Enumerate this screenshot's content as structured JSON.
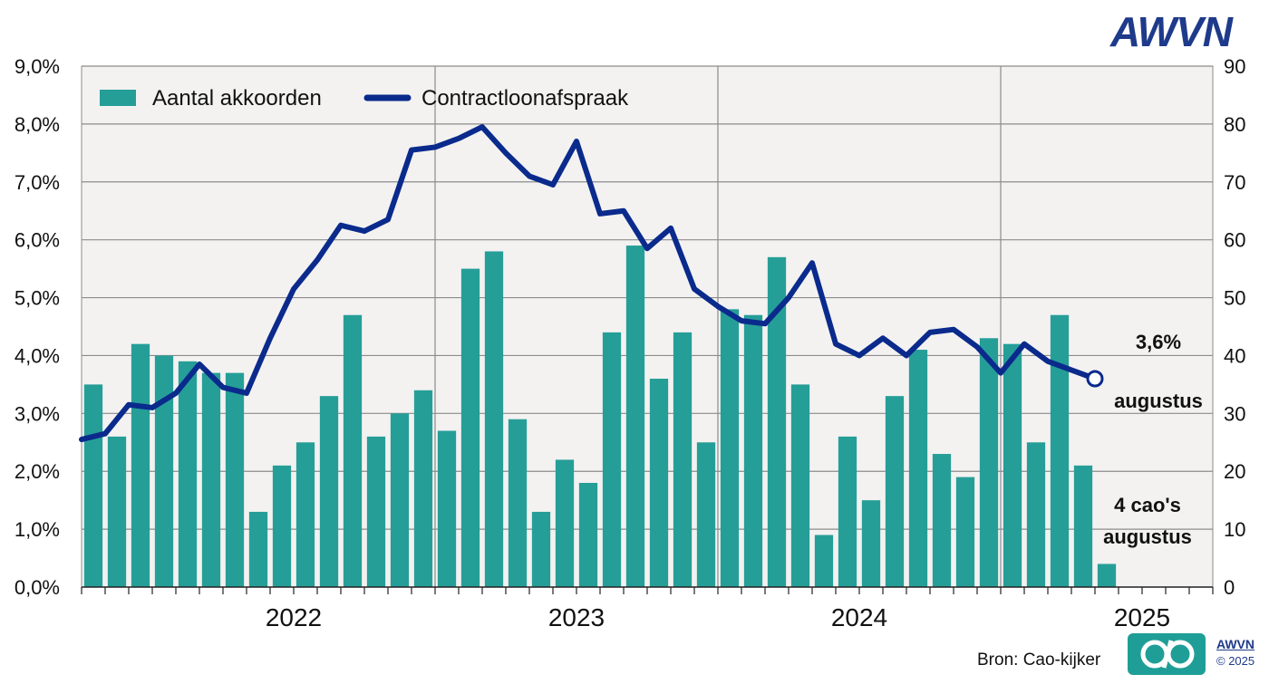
{
  "header": {
    "logo_text": "AWVN"
  },
  "footer": {
    "source": "Bron: Cao-kijker",
    "brand": "AWVN",
    "copyright": "© 2025"
  },
  "colors": {
    "bars": "#269e98",
    "line": "#0a2a8c",
    "plot_bg": "#f3f2f1",
    "grid": "#8c8c8c"
  },
  "chart_data": {
    "type": "bar+line",
    "legend": [
      "Aantal akkoorden",
      "Contractloonafspraak"
    ],
    "legend_position": "top-left",
    "grid": true,
    "x_axis": {
      "year_labels": [
        "2022",
        "2023",
        "2024",
        "2025"
      ],
      "start": "2021-10",
      "months": 48
    },
    "y_left": {
      "range": [
        0,
        9.0
      ],
      "ticks": [
        "0,0%",
        "1,0%",
        "2,0%",
        "3,0%",
        "4,0%",
        "5,0%",
        "6,0%",
        "7,0%",
        "8,0%",
        "9,0%"
      ]
    },
    "y_right": {
      "range": [
        0,
        90
      ],
      "ticks": [
        "0",
        "10",
        "20",
        "30",
        "40",
        "50",
        "60",
        "70",
        "80",
        "90"
      ]
    },
    "series": [
      {
        "name": "Aantal akkoorden",
        "axis": "right",
        "type": "bar",
        "values": [
          35,
          26,
          42,
          40,
          39,
          37,
          37,
          13,
          21,
          25,
          33,
          47,
          26,
          30,
          34,
          27,
          55,
          58,
          29,
          13,
          22,
          18,
          44,
          59,
          36,
          44,
          25,
          48,
          47,
          57,
          35,
          9,
          26,
          15,
          33,
          41,
          23,
          19,
          43,
          42,
          25,
          47,
          21,
          4
        ]
      },
      {
        "name": "Contractloonafspraak",
        "axis": "left",
        "type": "line",
        "values": [
          2.55,
          2.65,
          3.15,
          3.1,
          3.35,
          3.85,
          3.45,
          3.35,
          4.3,
          5.15,
          5.65,
          6.25,
          6.15,
          6.35,
          7.55,
          7.6,
          7.75,
          7.95,
          7.5,
          7.1,
          6.95,
          7.7,
          6.45,
          6.5,
          5.85,
          6.2,
          5.15,
          4.85,
          4.6,
          4.55,
          5.0,
          5.6,
          4.2,
          4.0,
          4.3,
          4.0,
          4.4,
          4.45,
          4.15,
          3.7,
          4.2,
          3.9,
          3.75,
          3.6
        ]
      }
    ],
    "annotations": [
      {
        "line1": "3,6%",
        "line2": "augustus"
      },
      {
        "line1": "4 cao's",
        "line2": "augustus"
      }
    ]
  }
}
